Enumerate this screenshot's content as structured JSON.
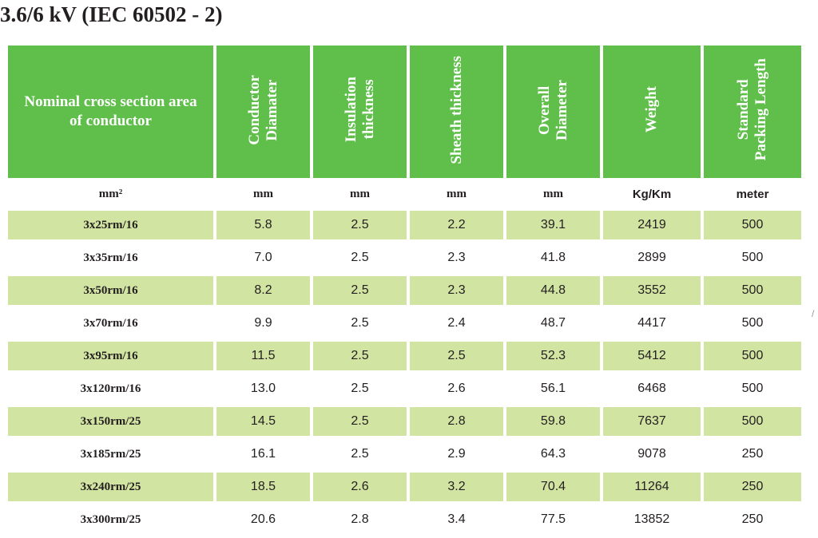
{
  "title": "3.6/6 kV (IEC 60502 - 2)",
  "columns": [
    {
      "header_lines": [
        "Nominal cross section area",
        "of conductor"
      ],
      "unit": "mm²"
    },
    {
      "header_lines": [
        "Conductor",
        "Diamater"
      ],
      "unit": "mm"
    },
    {
      "header_lines": [
        "Insulation",
        "thickness"
      ],
      "unit": "mm"
    },
    {
      "header_lines": [
        "Sheath thickness"
      ],
      "unit": "mm"
    },
    {
      "header_lines": [
        "Overall",
        "Diameter"
      ],
      "unit": "mm"
    },
    {
      "header_lines": [
        "Weight"
      ],
      "unit": "Kg/Km"
    },
    {
      "header_lines": [
        "Standard",
        "Packing Length"
      ],
      "unit": "meter"
    }
  ],
  "rows": [
    [
      "3x25rm/16",
      "5.8",
      "2.5",
      "2.2",
      "39.1",
      "2419",
      "500"
    ],
    [
      "3x35rm/16",
      "7.0",
      "2.5",
      "2.3",
      "41.8",
      "2899",
      "500"
    ],
    [
      "3x50rm/16",
      "8.2",
      "2.5",
      "2.3",
      "44.8",
      "3552",
      "500"
    ],
    [
      "3x70rm/16",
      "9.9",
      "2.5",
      "2.4",
      "48.7",
      "4417",
      "500"
    ],
    [
      "3x95rm/16",
      "11.5",
      "2.5",
      "2.5",
      "52.3",
      "5412",
      "500"
    ],
    [
      "3x120rm/16",
      "13.0",
      "2.5",
      "2.6",
      "56.1",
      "6468",
      "500"
    ],
    [
      "3x150rm/25",
      "14.5",
      "2.5",
      "2.8",
      "59.8",
      "7637",
      "500"
    ],
    [
      "3x185rm/25",
      "16.1",
      "2.5",
      "2.9",
      "64.3",
      "9078",
      "250"
    ],
    [
      "3x240rm/25",
      "18.5",
      "2.6",
      "3.2",
      "70.4",
      "11264",
      "250"
    ],
    [
      "3x300rm/25",
      "20.6",
      "2.8",
      "3.4",
      "77.5",
      "13852",
      "250"
    ]
  ],
  "colors": {
    "header_bg": "#5fbf4a",
    "header_text": "#ffffff",
    "shaded_row": "#d2e4a2",
    "text": "#231f20"
  }
}
